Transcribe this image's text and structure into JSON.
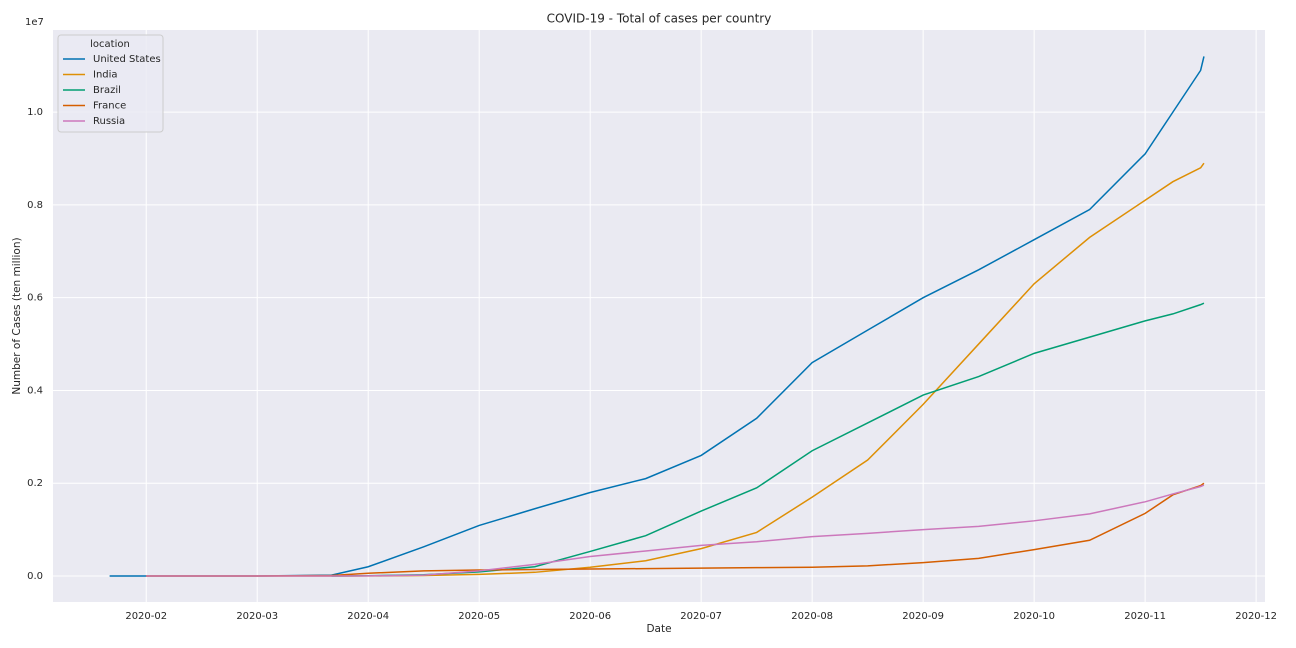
{
  "chart_data": {
    "type": "line",
    "title": "COVID-19 - Total of cases per country",
    "x_label": "Date",
    "y_label": "Number of Cases (ten million)",
    "y_offset_label": "1e7",
    "legend_title": "location",
    "legend": "upper left",
    "grid": true,
    "x": [
      0.67,
      1,
      2,
      2.67,
      3,
      3.5,
      4,
      4.5,
      5,
      5.5,
      6,
      6.5,
      7,
      7.5,
      8,
      8.5,
      9,
      9.5,
      10,
      10.25,
      10.5,
      10.53
    ],
    "series": [
      {
        "name": "United States",
        "color": "#0173b2",
        "values": [
          0,
          0,
          0,
          0.002,
          0.02,
          0.063,
          0.109,
          0.145,
          0.18,
          0.21,
          0.26,
          0.34,
          0.46,
          0.53,
          0.6,
          0.66,
          0.725,
          0.79,
          0.91,
          1.0,
          1.09,
          1.12
        ]
      },
      {
        "name": "India",
        "color": "#de8f05",
        "values": [
          null,
          0,
          0,
          0.0001,
          0.0002,
          0.0012,
          0.0035,
          0.008,
          0.019,
          0.033,
          0.059,
          0.094,
          0.17,
          0.25,
          0.37,
          0.5,
          0.63,
          0.73,
          0.81,
          0.85,
          0.88,
          0.89
        ]
      },
      {
        "name": "Brazil",
        "color": "#029e73",
        "values": [
          null,
          null,
          null,
          0.0001,
          0.0006,
          0.0028,
          0.009,
          0.02,
          0.053,
          0.087,
          0.14,
          0.19,
          0.27,
          0.33,
          0.39,
          0.43,
          0.48,
          0.515,
          0.55,
          0.565,
          0.585,
          0.588
        ]
      },
      {
        "name": "France",
        "color": "#d55e00",
        "values": [
          null,
          0,
          0.0001,
          0.0012,
          0.006,
          0.011,
          0.013,
          0.014,
          0.015,
          0.016,
          0.017,
          0.018,
          0.019,
          0.022,
          0.029,
          0.038,
          0.057,
          0.077,
          0.135,
          0.175,
          0.195,
          0.2
        ]
      },
      {
        "name": "Russia",
        "color": "#cc78bc",
        "values": [
          null,
          0,
          0,
          0,
          0.0003,
          0.002,
          0.011,
          0.025,
          0.042,
          0.054,
          0.066,
          0.074,
          0.085,
          0.092,
          0.1,
          0.107,
          0.119,
          0.134,
          0.16,
          0.177,
          0.193,
          0.196
        ]
      }
    ],
    "xlim": [
      0.16,
      11.08
    ],
    "xticks": [
      {
        "value": 1,
        "label": "2020-02"
      },
      {
        "value": 2,
        "label": "2020-03"
      },
      {
        "value": 3,
        "label": "2020-04"
      },
      {
        "value": 4,
        "label": "2020-05"
      },
      {
        "value": 5,
        "label": "2020-06"
      },
      {
        "value": 6,
        "label": "2020-07"
      },
      {
        "value": 7,
        "label": "2020-08"
      },
      {
        "value": 8,
        "label": "2020-09"
      },
      {
        "value": 9,
        "label": "2020-10"
      },
      {
        "value": 10,
        "label": "2020-11"
      },
      {
        "value": 11,
        "label": "2020-12"
      }
    ],
    "ylim": [
      -0.056,
      1.177
    ],
    "yticks": [
      {
        "value": 0,
        "label": "0.0"
      },
      0.2,
      0.4,
      0.6,
      0.8,
      {
        "value": 1,
        "label": "1.0"
      }
    ]
  }
}
